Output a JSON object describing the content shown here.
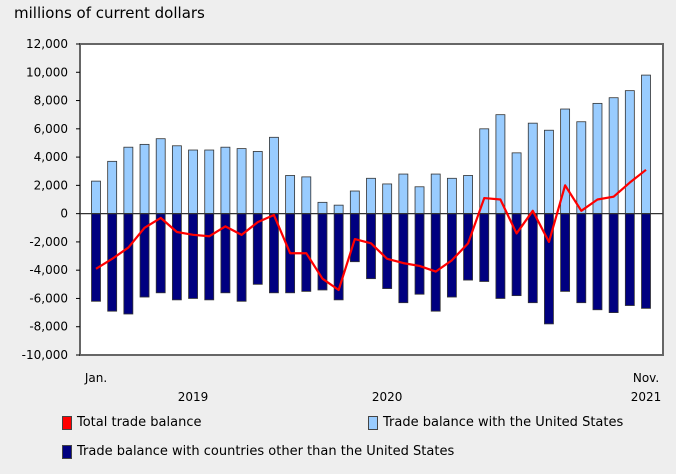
{
  "chart_data": {
    "type": "bar",
    "title": "",
    "ylabel": "millions of current dollars",
    "xlabel": "",
    "ylim": [
      -10000,
      12000
    ],
    "yticks": [
      12000,
      10000,
      8000,
      6000,
      4000,
      2000,
      0,
      -2000,
      -4000,
      -6000,
      -8000,
      -10000
    ],
    "ytick_labels": [
      "12,000",
      "10,000",
      "8,000",
      "6,000",
      "4,000",
      "2,000",
      "0",
      "-2,000",
      "-4,000",
      "-6,000",
      "-8,000",
      "-10,000"
    ],
    "x_start": "Jan. 2019",
    "x_end": "Nov. 2021",
    "x_labels": [
      {
        "month": "Jan.",
        "year": "",
        "index": 0
      },
      {
        "month": "",
        "year": "2019",
        "index": 6
      },
      {
        "month": "",
        "year": "2020",
        "index": 18
      },
      {
        "month": "Nov.",
        "year": "2021",
        "index": 34
      }
    ],
    "series": [
      {
        "name": "Trade balance with the United States",
        "kind": "bar",
        "color": "#99ccff",
        "values": [
          2300,
          3700,
          4700,
          4900,
          5300,
          4800,
          4500,
          4500,
          4700,
          4600,
          4400,
          5400,
          2700,
          2600,
          800,
          600,
          1600,
          2500,
          2100,
          2800,
          1900,
          2800,
          2500,
          2700,
          6000,
          7000,
          4300,
          6400,
          5900,
          7400,
          6500,
          7800,
          8200,
          8700,
          9800
        ]
      },
      {
        "name": "Trade balance with countries other than the United States",
        "kind": "bar",
        "color": "#000080",
        "values": [
          -6200,
          -6900,
          -7100,
          -5900,
          -5600,
          -6100,
          -6000,
          -6100,
          -5600,
          -6200,
          -5000,
          -5600,
          -5600,
          -5500,
          -5400,
          -6100,
          -3400,
          -4600,
          -5300,
          -6300,
          -5700,
          -6900,
          -5900,
          -4700,
          -4800,
          -6000,
          -5800,
          -6300,
          -7800,
          -5500,
          -6300,
          -6800,
          -7000,
          -6500,
          -6700
        ]
      },
      {
        "name": "Total trade balance",
        "kind": "line",
        "color": "#ff0000",
        "values": [
          -3900,
          -3200,
          -2400,
          -1000,
          -300,
          -1300,
          -1500,
          -1600,
          -900,
          -1500,
          -600,
          -100,
          -2800,
          -2800,
          -4600,
          -5400,
          -1800,
          -2100,
          -3200,
          -3500,
          -3700,
          -4100,
          -3300,
          -2100,
          1100,
          1000,
          -1400,
          200,
          -2000,
          2000,
          200,
          1000,
          1200,
          2200,
          3100
        ]
      }
    ],
    "legend": [
      "Total trade balance",
      "Trade balance with the United States",
      "Trade balance with countries other than the United States"
    ],
    "legend_position": "bottom",
    "grid": false
  }
}
